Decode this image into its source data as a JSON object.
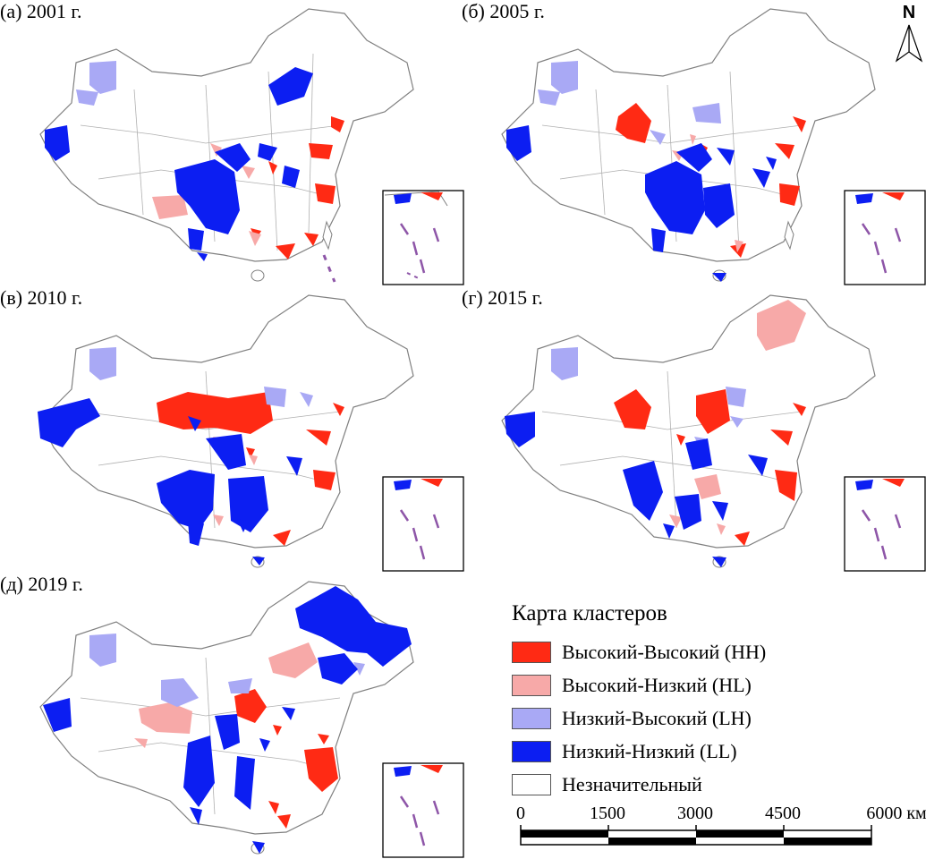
{
  "panels": [
    {
      "label": "(а) 2001 г.",
      "hh": 7,
      "hl": 4,
      "lh": 3,
      "ll": 8
    },
    {
      "label": "(б) 2005 г.",
      "hh": 6,
      "hl": 3,
      "lh": 4,
      "ll": 9
    },
    {
      "label": "(в) 2010 г.",
      "hh": 6,
      "hl": 3,
      "lh": 3,
      "ll": 9
    },
    {
      "label": "(г) 2015 г.",
      "hh": 7,
      "hl": 4,
      "lh": 4,
      "ll": 8
    },
    {
      "label": "(д) 2019 г.",
      "hh": 6,
      "hl": 5,
      "lh": 4,
      "ll": 9
    }
  ],
  "north_label": "N",
  "legend": {
    "title": "Карта кластеров",
    "items": [
      {
        "label": "Высокий-Высокий (HH)",
        "color": "#ff2a14"
      },
      {
        "label": "Высокий-Низкий (HL)",
        "color": "#f7a9a8"
      },
      {
        "label": "Низкий-Высокий (LH)",
        "color": "#a9a9f5"
      },
      {
        "label": "Низкий-Низкий (LL)",
        "color": "#0c1ef2"
      },
      {
        "label": "Незначительный",
        "color": "#ffffff"
      }
    ]
  },
  "scale": {
    "ticks": [
      "0",
      "1500",
      "3000",
      "4500",
      "6000 км"
    ]
  },
  "colors": {
    "outline": "#808080",
    "islands": "#8e56a8"
  }
}
